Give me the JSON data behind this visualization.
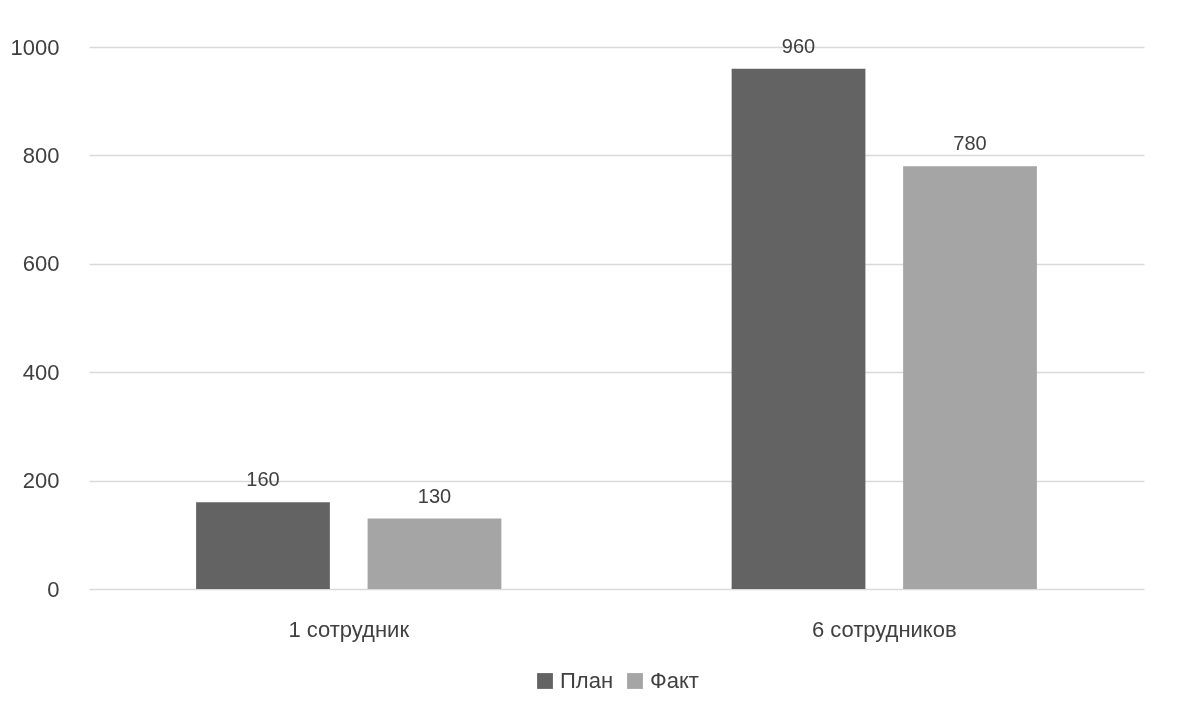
{
  "chart_data": {
    "type": "bar",
    "categories": [
      "1 сотрудник",
      "6 сотрудников"
    ],
    "series": [
      {
        "name": "План",
        "color": "#636363",
        "values": [
          160,
          960
        ]
      },
      {
        "name": "Факт",
        "color": "#a5a5a5",
        "values": [
          130,
          780
        ]
      }
    ],
    "ylim": [
      0,
      1000
    ],
    "yticks": [
      0,
      200,
      400,
      600,
      800,
      1000
    ],
    "grid": "y",
    "legend": "bottom",
    "data_labels": true
  }
}
